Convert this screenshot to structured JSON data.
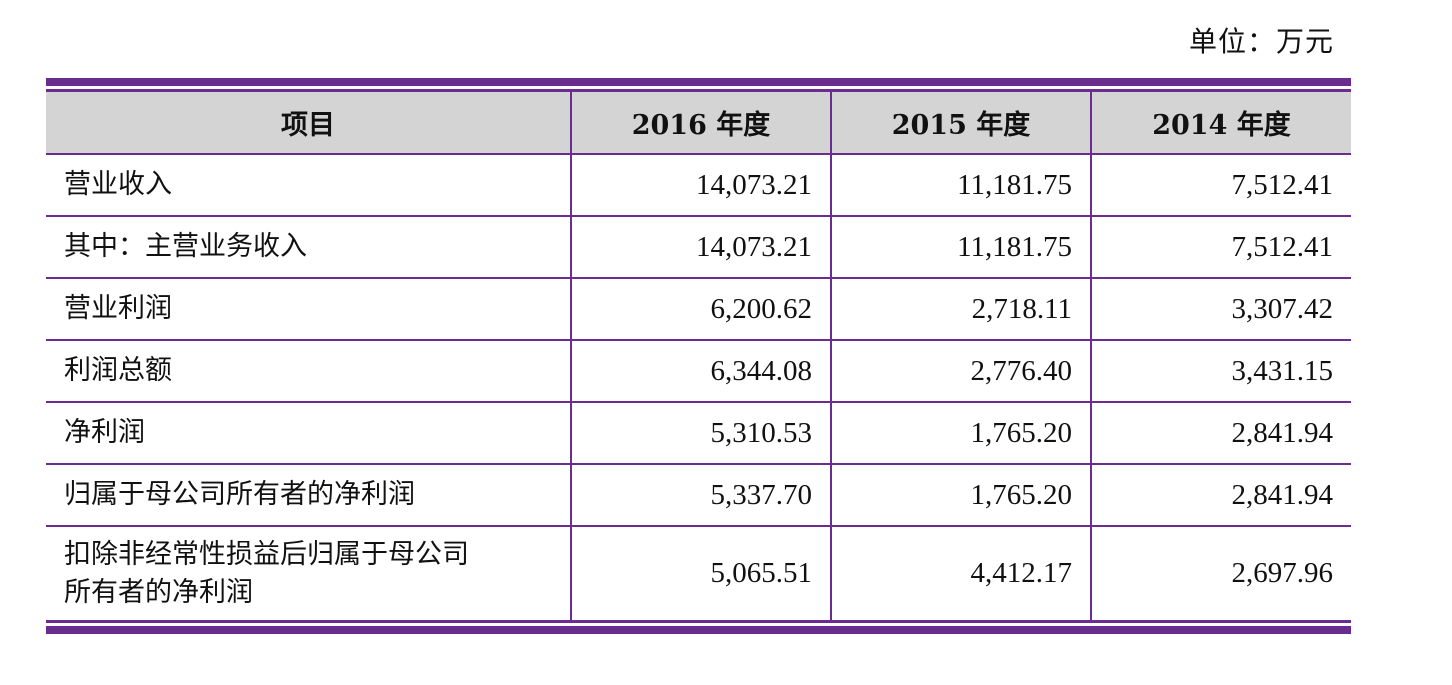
{
  "unit_label": "单位：万元",
  "header": {
    "item": "项目",
    "col_2016": "2016 年度",
    "col_2015": "2015 年度",
    "col_2014": "2014 年度"
  },
  "rows": [
    {
      "label": "营业收入",
      "v2016": "14,073.21",
      "v2015": "11,181.75",
      "v2014": "7,512.41"
    },
    {
      "label": "其中：主营业务收入",
      "v2016": "14,073.21",
      "v2015": "11,181.75",
      "v2014": "7,512.41"
    },
    {
      "label": "营业利润",
      "v2016": "6,200.62",
      "v2015": "2,718.11",
      "v2014": "3,307.42"
    },
    {
      "label": "利润总额",
      "v2016": "6,344.08",
      "v2015": "2,776.40",
      "v2014": "3,431.15"
    },
    {
      "label": "净利润",
      "v2016": "5,310.53",
      "v2015": "1,765.20",
      "v2014": "2,841.94"
    },
    {
      "label": "归属于母公司所有者的净利润",
      "v2016": "5,337.70",
      "v2015": "1,765.20",
      "v2014": "2,841.94"
    },
    {
      "label_line1": "扣除非经常性损益后归属于母公司",
      "label_line2": "所有者的净利润",
      "v2016": "5,065.51",
      "v2015": "4,412.17",
      "v2014": "2,697.96"
    }
  ],
  "colors": {
    "rule": "#6a2c8e",
    "header_bg": "#d4d4d4"
  }
}
